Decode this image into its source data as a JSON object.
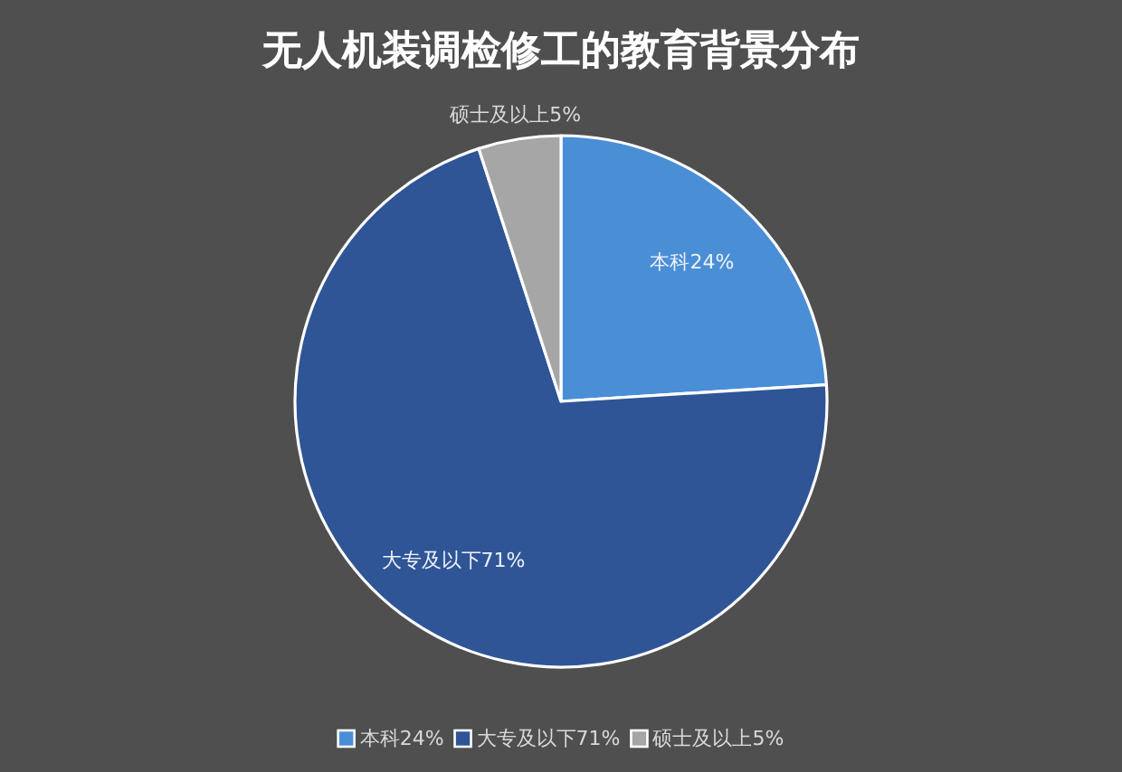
{
  "chart_data": {
    "type": "pie",
    "title": "无人机装调检修工的教育背景分布",
    "categories": [
      "本科24%",
      "大专及以下71%",
      "硕士及以上5%"
    ],
    "values": [
      24,
      71,
      5
    ],
    "colors": [
      "#4a8ed6",
      "#2f5597",
      "#a6a6a6"
    ],
    "value_labels": [
      "本科24%",
      "大专及以下71%",
      "硕士及以上5%"
    ],
    "legend": "bottom"
  }
}
